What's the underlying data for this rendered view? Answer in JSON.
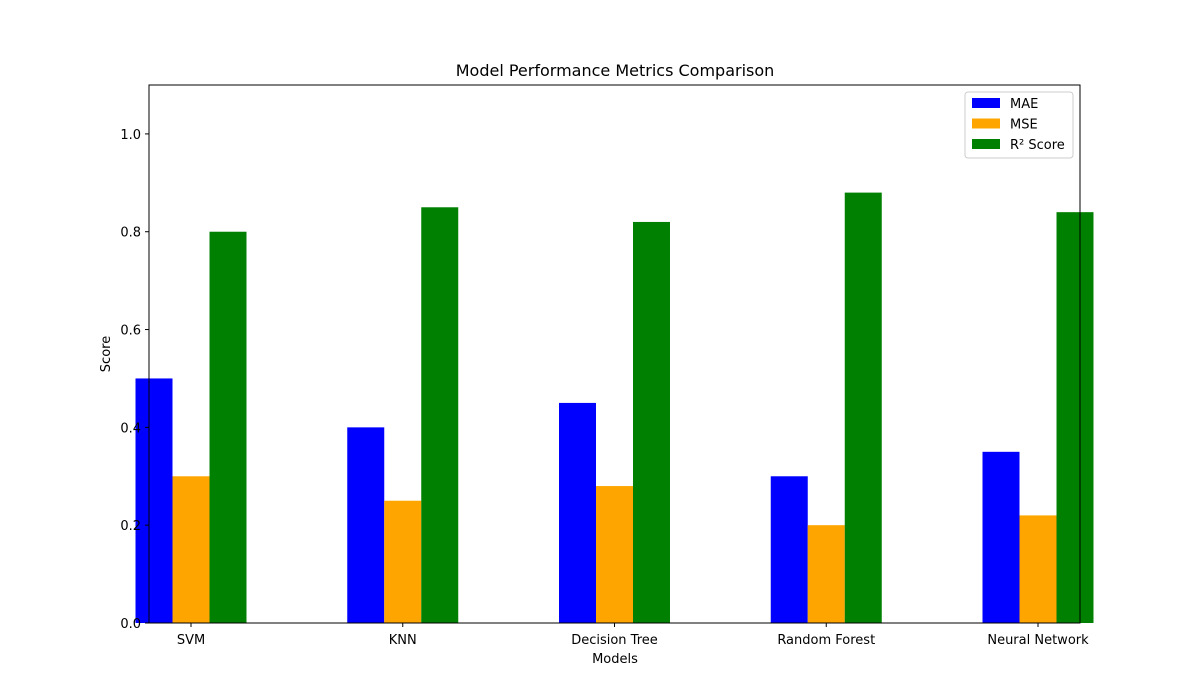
{
  "chart_data": {
    "type": "bar",
    "title": "Model Performance Metrics Comparison",
    "xlabel": "Models",
    "ylabel": "Score",
    "categories": [
      "SVM",
      "KNN",
      "Decision Tree",
      "Random Forest",
      "Neural Network"
    ],
    "series": [
      {
        "name": "MAE",
        "color": "#0000ff",
        "values": [
          0.5,
          0.4,
          0.45,
          0.3,
          0.35
        ]
      },
      {
        "name": "MSE",
        "color": "#ffa500",
        "values": [
          0.3,
          0.25,
          0.28,
          0.2,
          0.22
        ]
      },
      {
        "name": "R² Score",
        "color": "#008000",
        "values": [
          0.8,
          0.85,
          0.82,
          0.88,
          0.84
        ]
      }
    ],
    "ylim": [
      0,
      1.1
    ],
    "yticks": [
      "0.0",
      "0.2",
      "0.4",
      "0.6",
      "0.8",
      "1.0"
    ],
    "grid": false,
    "legend_position": "top-right"
  }
}
